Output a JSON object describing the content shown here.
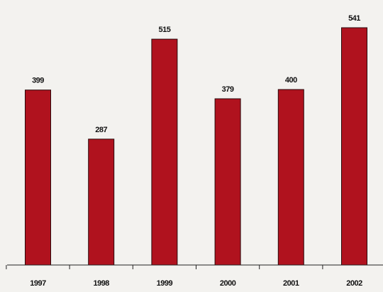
{
  "chart_data": {
    "type": "bar",
    "categories": [
      "1997",
      "1998",
      "1999",
      "2000",
      "2001",
      "2002"
    ],
    "values": [
      399,
      287,
      515,
      379,
      400,
      541
    ],
    "value_labels": [
      "399",
      "287",
      "515",
      "379",
      "400",
      "541"
    ],
    "title": "",
    "xlabel": "",
    "ylabel": "",
    "ylim": [
      0,
      600
    ],
    "grid": false,
    "legend": "none"
  },
  "colors": {
    "bar": "#b0121e",
    "axis": "#222222",
    "background": "#f3f2ef"
  }
}
